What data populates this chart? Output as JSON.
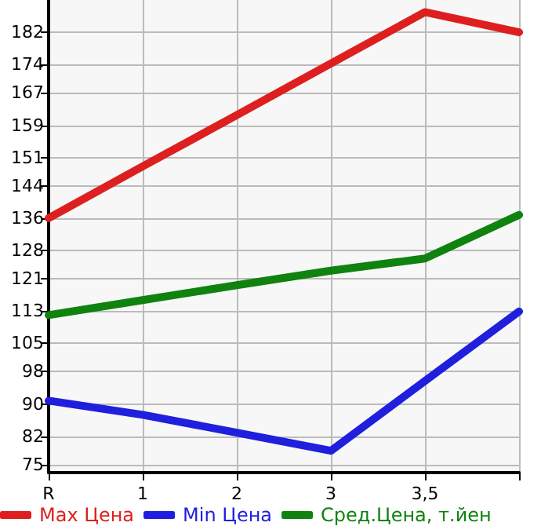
{
  "chart_data": {
    "type": "line",
    "categories": [
      "R",
      "1",
      "2",
      "3",
      "3,5",
      null
    ],
    "series": [
      {
        "name": "Max Цена",
        "color": "#dd1f1f",
        "values": [
          136,
          148.8,
          161.5,
          174.3,
          187,
          182
        ]
      },
      {
        "name": "Min Цена",
        "color": "#1f1fdd",
        "values": [
          90.8,
          87.3,
          82.9,
          78.4,
          95.7,
          112.9
        ]
      },
      {
        "name": "Сред.Цена, т.йен",
        "color": "#0f820f",
        "values": [
          112,
          115.7,
          119.4,
          123,
          126,
          136.8
        ]
      }
    ],
    "ylim": [
      73,
      190
    ],
    "yticks": [
      75,
      82,
      90,
      98,
      105,
      113,
      121,
      128,
      136,
      144,
      151,
      159,
      167,
      174,
      182
    ],
    "grid": true,
    "legend": "bottom",
    "marker": "none",
    "line_style": "solid"
  }
}
